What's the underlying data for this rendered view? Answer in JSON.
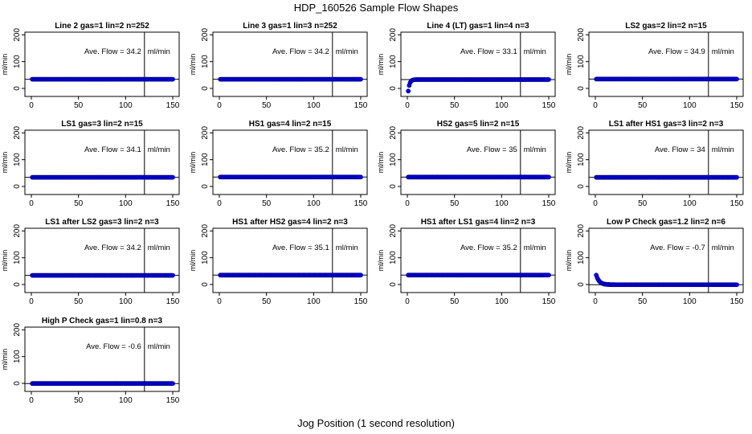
{
  "figure": {
    "title": "HDP_160526  Sample Flow Shapes",
    "xlabel": "Jog Position (1 second resolution)"
  },
  "panel_defaults": {
    "ylabel": "ml/min",
    "xlim": [
      0,
      150
    ],
    "ylim": [
      -30,
      210
    ],
    "xticks": [
      "0",
      "50",
      "100",
      "150"
    ],
    "yticks": [
      "0",
      "100",
      "200"
    ],
    "flow_unit": "ml/min",
    "flow_prefix": "Ave. Flow =",
    "marker_x": 120,
    "colors": {
      "points": "#0000ff",
      "point_edge": "#00008b",
      "axis": "#000000"
    }
  },
  "chart_data": [
    {
      "type": "scatter",
      "title": "Line 2 gas=1 lin=2 n=252",
      "ave_flow": "34.2",
      "x_range": [
        1,
        150
      ],
      "profile": "flat",
      "level": 34.2
    },
    {
      "type": "scatter",
      "title": "Line 3 gas=1 lin=3 n=252",
      "ave_flow": "34.2",
      "x_range": [
        1,
        150
      ],
      "profile": "flat",
      "level": 34.2
    },
    {
      "type": "scatter",
      "title": "Line 4 (LT) gas=1 lin=4 n=3",
      "ave_flow": "33.1",
      "x_range": [
        1,
        150
      ],
      "profile": "rise",
      "level": 33.1,
      "start": -10
    },
    {
      "type": "scatter",
      "title": "LS2 gas=2 lin=2 n=15",
      "ave_flow": "34.9",
      "x_range": [
        1,
        150
      ],
      "profile": "flat",
      "level": 34.9
    },
    {
      "type": "scatter",
      "title": "LS1 gas=3 lin=2 n=15",
      "ave_flow": "34.1",
      "x_range": [
        1,
        150
      ],
      "profile": "flat",
      "level": 34.1
    },
    {
      "type": "scatter",
      "title": "HS1 gas=4 lin=2 n=15",
      "ave_flow": "35.2",
      "x_range": [
        1,
        150
      ],
      "profile": "flat",
      "level": 35.2
    },
    {
      "type": "scatter",
      "title": "HS2 gas=5 lin=2 n=15",
      "ave_flow": "35",
      "x_range": [
        1,
        150
      ],
      "profile": "flat",
      "level": 35
    },
    {
      "type": "scatter",
      "title": "LS1 after HS1 gas=3 lin=2 n=3",
      "ave_flow": "34",
      "x_range": [
        1,
        150
      ],
      "profile": "flat",
      "level": 34
    },
    {
      "type": "scatter",
      "title": "LS1 after LS2 gas=3 lin=2 n=3",
      "ave_flow": "34.2",
      "x_range": [
        1,
        150
      ],
      "profile": "flat",
      "level": 34.2
    },
    {
      "type": "scatter",
      "title": "HS1 after HS2 gas=4 lin=2 n=3",
      "ave_flow": "35.1",
      "x_range": [
        1,
        150
      ],
      "profile": "flat",
      "level": 35.1
    },
    {
      "type": "scatter",
      "title": "HS1 after LS1 gas=4 lin=2 n=3",
      "ave_flow": "35.2",
      "x_range": [
        1,
        150
      ],
      "profile": "flat",
      "level": 35.2
    },
    {
      "type": "scatter",
      "title": "Low P Check gas=1.2 lin=2 n=6",
      "ave_flow": "-0.7",
      "x_range": [
        1,
        150
      ],
      "profile": "decay",
      "level": -0.7,
      "start": 35
    },
    {
      "type": "scatter",
      "title": "High P Check gas=1 lin=0.8 n=3",
      "ave_flow": "-0.6",
      "x_range": [
        1,
        150
      ],
      "profile": "flat",
      "level": -0.6
    }
  ]
}
